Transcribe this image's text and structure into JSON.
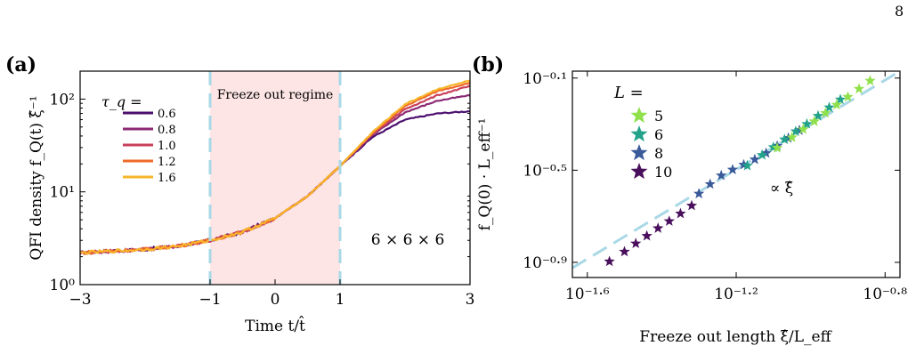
{
  "page_number": "8",
  "colors": {
    "tau_series": [
      "#4b0f6e",
      "#8c2a75",
      "#c8405a",
      "#ef6a2a",
      "#f7b52a"
    ],
    "size_series": {
      "5": "#8fe04a",
      "6": "#23a28a",
      "8": "#3b5a9a",
      "10": "#4a0f5c"
    },
    "dashed_guides": "#a9d8e6",
    "freeze_region": "#fde5e5"
  },
  "panel_a": {
    "label": "(a)",
    "region_label": "Freeze out regime",
    "annotation": "6 × 6 × 6",
    "legend_title": "τ_q =",
    "xlabel": "Time t/t̂",
    "ylabel": "QFI density f_Q(t) ξ̂⁻¹",
    "xticks": [
      "−3",
      "−1",
      "0",
      "1",
      "3"
    ],
    "yticks": [
      "10⁰",
      "10¹",
      "10²"
    ]
  },
  "panel_b": {
    "label": "(b)",
    "legend_title": "L =",
    "annotation": "∝ ξ̂",
    "xlabel": "Freeze out length ξ̂/L_eff",
    "ylabel": "f_Q(0) · L_eff⁻¹",
    "xticks": [
      "10⁻¹·⁶",
      "10⁻¹·²",
      "10⁻⁰·⁸"
    ],
    "yticks": [
      "10⁻⁰·¹",
      "10⁻⁰·⁵",
      "10⁻⁰·⁹"
    ]
  },
  "chart_data": [
    {
      "type": "line",
      "xlabel": "Time t/t̂",
      "ylabel": "QFI density f_Q(t) ξ̂⁻¹",
      "xlim": [
        -3,
        3
      ],
      "ylim": [
        1,
        200
      ],
      "yscale": "log",
      "legend": "left",
      "shaded_region": [
        -1,
        1
      ],
      "series": [
        {
          "name": "0.6",
          "x": [
            -3,
            -2.5,
            -2,
            -1.5,
            -1,
            -0.5,
            0,
            0.5,
            1,
            1.5,
            2,
            2.5,
            3
          ],
          "y": [
            2.2,
            2.3,
            2.4,
            2.6,
            3.0,
            3.7,
            5.2,
            9.0,
            19,
            39,
            60,
            70,
            74
          ]
        },
        {
          "name": "0.8",
          "x": [
            -3,
            -2.5,
            -2,
            -1.5,
            -1,
            -0.5,
            0,
            0.5,
            1,
            1.5,
            2,
            2.5,
            3
          ],
          "y": [
            2.2,
            2.3,
            2.4,
            2.6,
            3.0,
            3.7,
            5.2,
            9.0,
            19,
            41,
            72,
            96,
            110
          ]
        },
        {
          "name": "1.0",
          "x": [
            -3,
            -2.5,
            -2,
            -1.5,
            -1,
            -0.5,
            0,
            0.5,
            1,
            1.5,
            2,
            2.5,
            3
          ],
          "y": [
            2.2,
            2.3,
            2.4,
            2.6,
            3.0,
            3.7,
            5.2,
            9.0,
            19,
            42,
            78,
            110,
            138
          ]
        },
        {
          "name": "1.2",
          "x": [
            -3,
            -2.5,
            -2,
            -1.5,
            -1,
            -0.5,
            0,
            0.5,
            1,
            1.5,
            2,
            2.5,
            3
          ],
          "y": [
            2.2,
            2.3,
            2.4,
            2.6,
            3.0,
            3.7,
            5.2,
            9.0,
            19,
            43,
            84,
            122,
            150
          ]
        },
        {
          "name": "1.6",
          "x": [
            -3,
            -2.5,
            -2,
            -1.5,
            -1,
            -0.5,
            0,
            0.5,
            1,
            1.5,
            2,
            2.5,
            3
          ],
          "y": [
            2.2,
            2.3,
            2.4,
            2.6,
            3.0,
            3.7,
            5.2,
            9.0,
            19,
            44,
            88,
            128,
            158
          ]
        }
      ]
    },
    {
      "type": "scatter",
      "xlabel": "Freeze out length ξ̂/L_eff",
      "ylabel": "f_Q(0) · L_eff⁻¹",
      "xscale": "log",
      "yscale": "log",
      "xlim": [
        0.0229,
        0.1738
      ],
      "ylim": [
        0.1082,
        0.8511
      ],
      "legend": "top-left",
      "fit_line": {
        "label": "∝ ξ̂",
        "slope": 1
      },
      "series": [
        {
          "name": "10",
          "x": [
            0.0288,
            0.0316,
            0.0339,
            0.0363,
            0.0389,
            0.0417,
            0.0447,
            0.0479
          ],
          "y": [
            0.127,
            0.14,
            0.152,
            0.164,
            0.177,
            0.19,
            0.205,
            0.222
          ]
        },
        {
          "name": "8",
          "x": [
            0.0501,
            0.0537,
            0.0575,
            0.0617,
            0.0661,
            0.0708,
            0.0759,
            0.0813,
            0.0871,
            0.0933
          ],
          "y": [
            0.25,
            0.275,
            0.3,
            0.318,
            0.334,
            0.352,
            0.375,
            0.403,
            0.436,
            0.471
          ]
        },
        {
          "name": "6",
          "x": [
            0.0676,
            0.0741,
            0.0794,
            0.0851,
            0.0912,
            0.0977,
            0.1047,
            0.1122,
            0.1202
          ],
          "y": [
            0.331,
            0.368,
            0.398,
            0.43,
            0.466,
            0.502,
            0.544,
            0.592,
            0.641
          ]
        },
        {
          "name": "5",
          "x": [
            0.0813,
            0.0891,
            0.0955,
            0.1023,
            0.1096,
            0.1175,
            0.1259,
            0.1349,
            0.1445
          ],
          "y": [
            0.395,
            0.439,
            0.476,
            0.515,
            0.56,
            0.608,
            0.658,
            0.713,
            0.773
          ]
        }
      ]
    }
  ]
}
